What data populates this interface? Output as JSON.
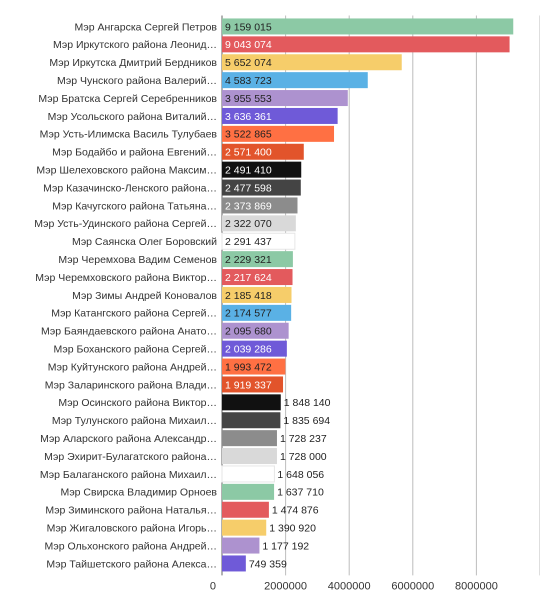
{
  "chart_data": {
    "type": "bar",
    "orientation": "horizontal",
    "title": "",
    "xlabel": "",
    "ylabel": "",
    "xlim": [
      0,
      10000000
    ],
    "grid": true,
    "legend": "none",
    "x_ticks": [
      "0",
      "2000000",
      "4000000",
      "6000000",
      "8000000",
      "10000000"
    ],
    "categories": [
      "Мэр Ангарска Сергей Петров",
      "Мэр Иркутского района Леонид…",
      "Мэр Иркутска Дмитрий Бердников",
      "Мэр Чунского района Валерий…",
      "Мэр Братска Сергей Серебренников",
      "Мэр Усольского района Виталий…",
      "Мэр Усть-Илимска Василь Тулубаев",
      "Мэр Бодайбо и района Евгений…",
      "Мэр Шелеховского района Максим…",
      "Мэр Казачинско-Ленского района…",
      "Мэр Качугского района Татьяна…",
      "Мэр Усть-Удинского района Сергей…",
      "Мэр Саянска Олег Боровский",
      "Мэр Черемхова Вадим Семенов",
      "Мэр Черемховского района Виктор…",
      "Мэр Зимы Андрей Коновалов",
      "Мэр Катангского района Сергей…",
      "Мэр Баяндаевского района Анато…",
      "Мэр Боханского района Сергей…",
      "Мэр Куйтунского района Андрей…",
      "Мэр Заларинского района Влади…",
      "Мэр Осинского района Виктор…",
      "Мэр Тулунского района Михаил…",
      "Мэр Аларского района Александр…",
      "Мэр Эхирит-Булагатского района…",
      "Мэр Балаганского района Михаил…",
      "Мэр Свирска Владимир Орноев",
      "Мэр Зиминского района Наталья…",
      "Мэр Жигаловского района Игорь…",
      "Мэр Ольхонского района Андрей…",
      "Мэр Тайшетского района Алекса…"
    ],
    "values": [
      9159015,
      9043074,
      5652074,
      4583723,
      3955553,
      3636361,
      3522865,
      2571400,
      2491410,
      2477598,
      2373869,
      2322070,
      2291437,
      2229321,
      2217624,
      2185418,
      2174577,
      2095680,
      2039286,
      1993472,
      1919337,
      1848140,
      1835694,
      1728237,
      1728000,
      1648056,
      1637710,
      1474876,
      1390920,
      1177192,
      749359
    ],
    "value_labels": [
      "9 159 015",
      "9 043 074",
      "5 652 074",
      "4 583 723",
      "3 955 553",
      "3 636 361",
      "3 522 865",
      "2 571 400",
      "2 491 410",
      "2 477 598",
      "2 373 869",
      "2 322 070",
      "2 291 437",
      "2 229 321",
      "2 217 624",
      "2 185 418",
      "2 174 577",
      "2 095 680",
      "2 039 286",
      "1 993 472",
      "1 919 337",
      "1 848 140",
      "1 835 694",
      "1 728 237",
      "1 728 000",
      "1 648 056",
      "1 637 710",
      "1 474 876",
      "1 390 920",
      "1 177 192",
      "749 359"
    ],
    "colors": [
      "#8cc9a5",
      "#e35a5d",
      "#f6cd6a",
      "#5ab1e5",
      "#ad92cf",
      "#6f5ad8",
      "#ff7043",
      "#e2542b",
      "#111111",
      "#444444",
      "#8c8c8c",
      "#d9d9d9",
      "#ffffff",
      "#8cc9a5",
      "#e35a5d",
      "#f6cd6a",
      "#5ab1e5",
      "#ad92cf",
      "#6f5ad8",
      "#ff7043",
      "#e2542b",
      "#111111",
      "#444444",
      "#8c8c8c",
      "#d9d9d9",
      "#ffffff",
      "#8cc9a5",
      "#e35a5d",
      "#f6cd6a",
      "#ad92cf",
      "#6f5ad8"
    ]
  }
}
